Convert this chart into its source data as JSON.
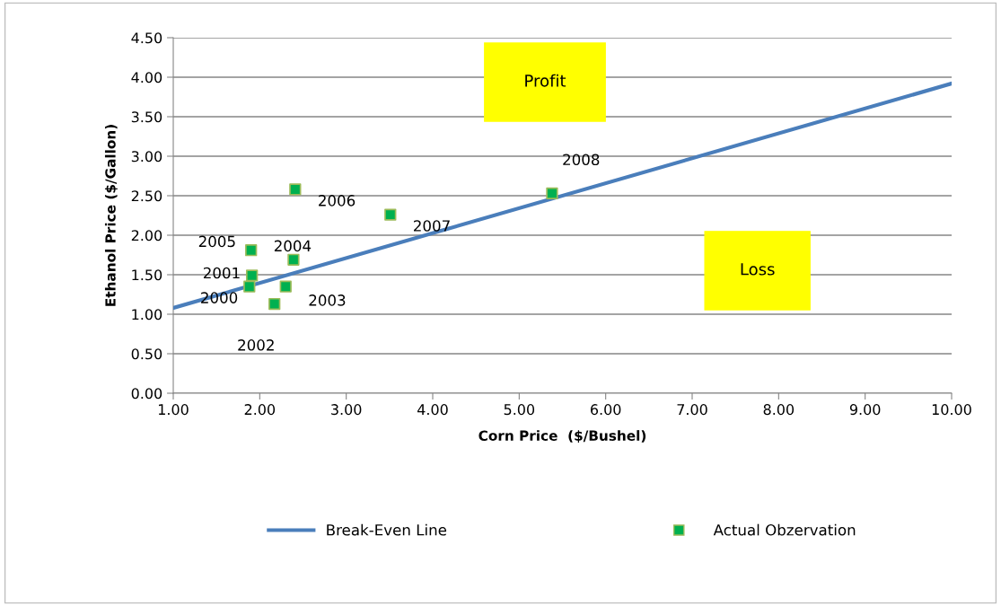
{
  "chart_data": {
    "type": "scatter",
    "xlabel": "Corn Price  ($/Bushel)",
    "ylabel": "Ethanol Price ($/Gallon)",
    "xlim": [
      1,
      10
    ],
    "xticks": [
      {
        "value": 1,
        "label": "1.00"
      },
      {
        "value": 2,
        "label": "2.00"
      },
      {
        "value": 3,
        "label": "3.00"
      },
      {
        "value": 4,
        "label": "4.00"
      },
      {
        "value": 5,
        "label": "5.00"
      },
      {
        "value": 6,
        "label": "6.00"
      },
      {
        "value": 7,
        "label": "7.00"
      },
      {
        "value": 8,
        "label": "8.00"
      },
      {
        "value": 9,
        "label": "9.00"
      },
      {
        "value": 10,
        "label": "10.00"
      }
    ],
    "ylim": [
      0,
      4.5
    ],
    "yticks": [
      {
        "value": 0,
        "label": "0.00"
      },
      {
        "value": 0.5,
        "label": "0.50"
      },
      {
        "value": 1,
        "label": "1.00"
      },
      {
        "value": 1.5,
        "label": "1.50"
      },
      {
        "value": 2,
        "label": "2.00"
      },
      {
        "value": 2.5,
        "label": "2.50"
      },
      {
        "value": 3,
        "label": "3.00"
      },
      {
        "value": 3.5,
        "label": "3.50"
      },
      {
        "value": 4,
        "label": "4.00"
      },
      {
        "value": 4.5,
        "label": "4.50"
      }
    ],
    "grid": "y",
    "legend": "bottom",
    "series": [
      {
        "name": "Break-Even Line",
        "type": "line",
        "color": "#4a7ebb",
        "x": [
          1,
          10
        ],
        "values": [
          1.08,
          3.92
        ],
        "marker": "none"
      },
      {
        "name": "Actual Obzervation",
        "color": "#00b050",
        "marker": "square",
        "x": [
          1.88,
          1.91,
          2.17,
          2.3,
          2.39,
          1.9,
          2.41,
          3.51,
          5.38
        ],
        "values": [
          1.35,
          1.49,
          1.13,
          1.35,
          1.69,
          1.81,
          2.58,
          2.26,
          2.53
        ]
      }
    ],
    "annotations": [
      {
        "text": "2000",
        "x": 1.88,
        "y": 1.35
      },
      {
        "text": "2001",
        "x": 1.91,
        "y": 1.49
      },
      {
        "text": "2002",
        "x": 2.17,
        "y": 1.13
      },
      {
        "text": "2003",
        "x": 2.3,
        "y": 1.35
      },
      {
        "text": "2004",
        "x": 2.39,
        "y": 1.69
      },
      {
        "text": "2005",
        "x": 1.9,
        "y": 1.81
      },
      {
        "text": "2006",
        "x": 2.41,
        "y": 2.58
      },
      {
        "text": "2007",
        "x": 3.51,
        "y": 2.26
      },
      {
        "text": "2008",
        "x": 5.38,
        "y": 2.53
      },
      "Profit",
      "Loss"
    ]
  }
}
